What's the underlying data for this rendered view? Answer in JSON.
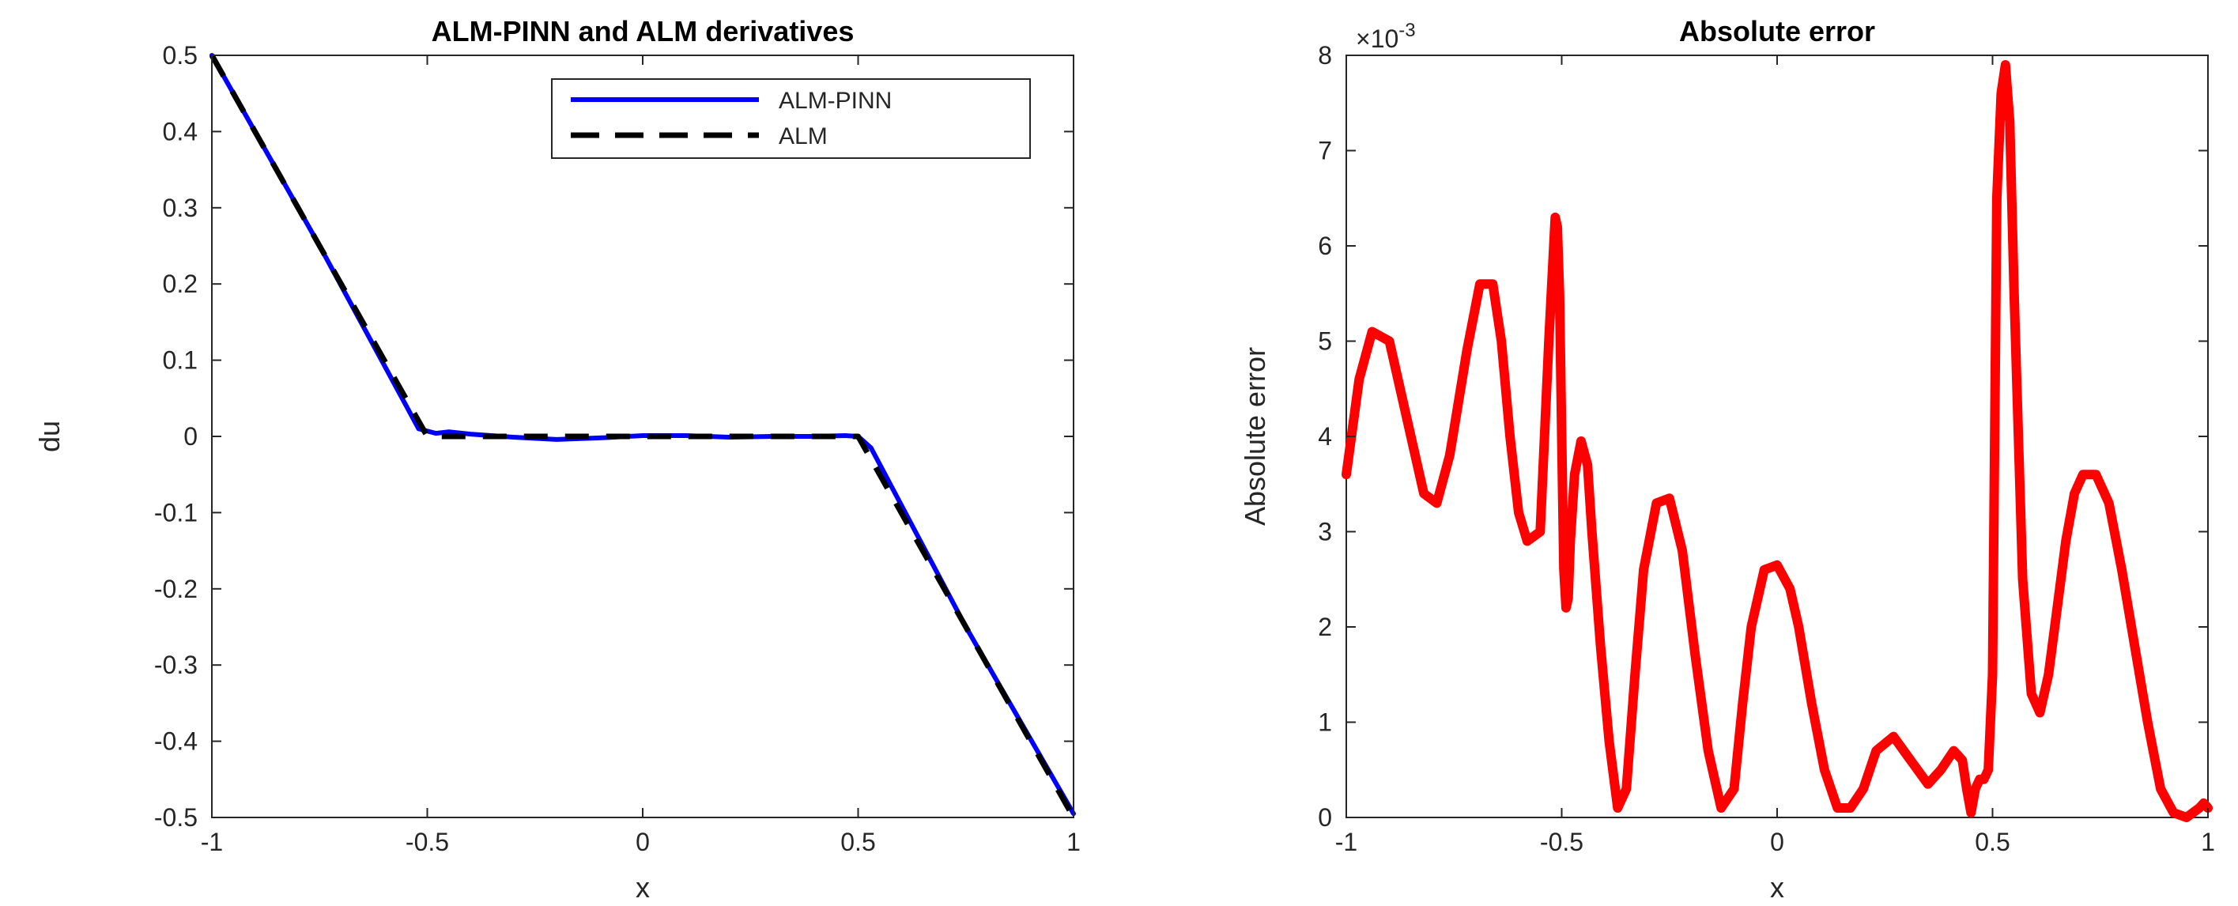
{
  "chart_data": [
    {
      "type": "line",
      "title": "ALM-PINN and ALM derivatives",
      "xlabel": "x",
      "ylabel": "du",
      "xlim": [
        -1,
        1
      ],
      "ylim": [
        -0.5,
        0.5
      ],
      "xticks": [
        "-1",
        "-0.5",
        "0",
        "0.5",
        "1"
      ],
      "yticks": [
        "-0.5",
        "-0.4",
        "-0.3",
        "-0.2",
        "-0.1",
        "0",
        "0.1",
        "0.2",
        "0.3",
        "0.4",
        "0.5"
      ],
      "legend_position": "top-right",
      "series": [
        {
          "name": "ALM-PINN",
          "color": "#0000ff",
          "style": "solid",
          "x": [
            -1,
            -0.75,
            -0.52,
            -0.48,
            -0.45,
            -0.4,
            -0.3,
            -0.2,
            -0.1,
            0,
            0.1,
            0.2,
            0.3,
            0.4,
            0.47,
            0.5,
            0.53,
            0.75,
            1
          ],
          "y": [
            0.5,
            0.25,
            0.01,
            0.004,
            0.006,
            0.003,
            -0.001,
            -0.004,
            -0.002,
            0.001,
            0.001,
            -0.001,
            0.0,
            0.0,
            0.001,
            0.0,
            -0.015,
            -0.25,
            -0.495
          ]
        },
        {
          "name": "ALM",
          "color": "#000000",
          "style": "dashed",
          "x": [
            -1,
            -0.5,
            0.5,
            1
          ],
          "y": [
            0.5,
            0.0,
            0.0,
            -0.5
          ]
        }
      ]
    },
    {
      "type": "line",
      "title": "Absolute error",
      "xlabel": "x",
      "ylabel": "Absolute error",
      "exponent_label": "×10",
      "exponent_power": "-3",
      "xlim": [
        -1,
        1
      ],
      "ylim": [
        0,
        8
      ],
      "xticks": [
        "-1",
        "-0.5",
        "0",
        "0.5",
        "1"
      ],
      "yticks": [
        "0",
        "1",
        "2",
        "3",
        "4",
        "5",
        "6",
        "7",
        "8"
      ],
      "series": [
        {
          "color": "#ff0000",
          "x": [
            -1,
            -0.97,
            -0.94,
            -0.9,
            -0.86,
            -0.82,
            -0.79,
            -0.76,
            -0.72,
            -0.69,
            -0.66,
            -0.64,
            -0.62,
            -0.6,
            -0.58,
            -0.55,
            -0.53,
            -0.515,
            -0.51,
            -0.505,
            -0.5,
            -0.495,
            -0.49,
            -0.485,
            -0.48,
            -0.47,
            -0.455,
            -0.44,
            -0.43,
            -0.41,
            -0.39,
            -0.37,
            -0.35,
            -0.33,
            -0.31,
            -0.28,
            -0.25,
            -0.22,
            -0.19,
            -0.16,
            -0.13,
            -0.1,
            -0.08,
            -0.06,
            -0.03,
            0,
            0.03,
            0.05,
            0.08,
            0.11,
            0.14,
            0.17,
            0.2,
            0.23,
            0.27,
            0.31,
            0.35,
            0.38,
            0.41,
            0.43,
            0.44,
            0.45,
            0.46,
            0.47,
            0.48,
            0.49,
            0.5,
            0.505,
            0.51,
            0.52,
            0.53,
            0.54,
            0.55,
            0.57,
            0.59,
            0.61,
            0.63,
            0.65,
            0.67,
            0.69,
            0.71,
            0.74,
            0.77,
            0.8,
            0.83,
            0.86,
            0.89,
            0.92,
            0.95,
            0.98,
            0.99,
            1
          ],
          "y": [
            3.6,
            4.6,
            5.1,
            5.0,
            4.2,
            3.4,
            3.3,
            3.8,
            4.9,
            5.6,
            5.6,
            5.0,
            4.0,
            3.2,
            2.9,
            3.0,
            5.0,
            6.3,
            6.2,
            5.5,
            4.0,
            2.6,
            2.2,
            2.3,
            2.9,
            3.6,
            3.95,
            3.7,
            3.0,
            1.8,
            0.8,
            0.1,
            0.3,
            1.5,
            2.6,
            3.3,
            3.35,
            2.8,
            1.7,
            0.7,
            0.1,
            0.3,
            1.2,
            2.0,
            2.6,
            2.65,
            2.4,
            2.0,
            1.2,
            0.5,
            0.1,
            0.1,
            0.3,
            0.7,
            0.85,
            0.6,
            0.35,
            0.5,
            0.7,
            0.6,
            0.3,
            0.05,
            0.3,
            0.4,
            0.4,
            0.5,
            1.5,
            4.0,
            6.5,
            7.6,
            7.9,
            7.3,
            5.5,
            2.5,
            1.3,
            1.1,
            1.5,
            2.2,
            2.9,
            3.4,
            3.6,
            3.6,
            3.3,
            2.6,
            1.8,
            1.0,
            0.3,
            0.05,
            0.0,
            0.1,
            0.15,
            0.1
          ]
        }
      ]
    }
  ]
}
